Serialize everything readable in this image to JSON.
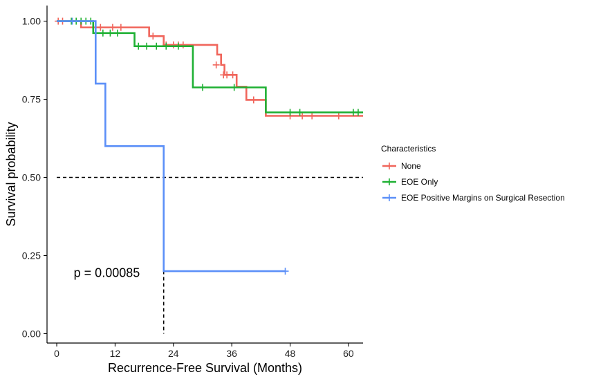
{
  "chart_data": {
    "type": "line",
    "subtype": "kaplan-meier",
    "xlabel": "Recurrence-Free Survival (Months)",
    "ylabel": "Survival probability",
    "xlim": [
      -2,
      63
    ],
    "ylim": [
      -0.03,
      1.05
    ],
    "xticks": [
      0,
      12,
      24,
      36,
      48,
      60
    ],
    "yticks": [
      0.0,
      0.25,
      0.5,
      0.75,
      1.0
    ],
    "ytick_labels": [
      "0.00",
      "0.25",
      "0.50",
      "0.75",
      "1.00"
    ],
    "grid": false,
    "annotation": "p = 0.00085",
    "annotation_pos": {
      "x": 3.5,
      "y": 0.195
    },
    "median_line": {
      "y": 0.5,
      "x_end": 22,
      "style": "dashed"
    },
    "legend": {
      "title": "Characteristics",
      "position": "right"
    },
    "series": [
      {
        "name": "None",
        "color": "#F0655B",
        "steps": [
          [
            0,
            1.0
          ],
          [
            5,
            0.98
          ],
          [
            19,
            0.952
          ],
          [
            22,
            0.924
          ],
          [
            33,
            0.893
          ],
          [
            33.8,
            0.86
          ],
          [
            34.5,
            0.828
          ],
          [
            37,
            0.79
          ],
          [
            39,
            0.748
          ],
          [
            43,
            0.697
          ],
          [
            63,
            0.697
          ]
        ],
        "censors": [
          [
            0.3,
            1.0
          ],
          [
            1.2,
            1.0
          ],
          [
            7.5,
            0.98
          ],
          [
            9,
            0.98
          ],
          [
            11.5,
            0.98
          ],
          [
            13.2,
            0.98
          ],
          [
            19.8,
            0.952
          ],
          [
            22.5,
            0.924
          ],
          [
            24,
            0.924
          ],
          [
            25,
            0.924
          ],
          [
            26,
            0.924
          ],
          [
            32.8,
            0.86
          ],
          [
            34.3,
            0.828
          ],
          [
            35,
            0.828
          ],
          [
            36.2,
            0.828
          ],
          [
            40.5,
            0.748
          ],
          [
            48,
            0.697
          ],
          [
            50.5,
            0.697
          ],
          [
            52.5,
            0.697
          ],
          [
            58,
            0.697
          ]
        ]
      },
      {
        "name": "EOE Only",
        "color": "#1EB033",
        "steps": [
          [
            0,
            1.0
          ],
          [
            7.5,
            0.962
          ],
          [
            16,
            0.92
          ],
          [
            28,
            0.788
          ],
          [
            43,
            0.708
          ],
          [
            63,
            0.708
          ]
        ],
        "censors": [
          [
            3,
            1.0
          ],
          [
            4,
            1.0
          ],
          [
            5,
            1.0
          ],
          [
            6,
            1.0
          ],
          [
            7,
            1.0
          ],
          [
            9.5,
            0.962
          ],
          [
            11,
            0.962
          ],
          [
            12.5,
            0.962
          ],
          [
            16.8,
            0.92
          ],
          [
            18.5,
            0.92
          ],
          [
            20.5,
            0.92
          ],
          [
            22.5,
            0.92
          ],
          [
            25,
            0.92
          ],
          [
            30,
            0.788
          ],
          [
            36.5,
            0.788
          ],
          [
            48,
            0.708
          ],
          [
            50,
            0.708
          ],
          [
            61,
            0.708
          ],
          [
            62,
            0.708
          ]
        ]
      },
      {
        "name": "EOE Positive Margins on Surgical Resection",
        "color": "#5B8FF8",
        "steps": [
          [
            0,
            1.0
          ],
          [
            8,
            0.8
          ],
          [
            10,
            0.6
          ],
          [
            22,
            0.2
          ],
          [
            47,
            0.2
          ]
        ],
        "censors": [
          [
            3.2,
            1.0
          ],
          [
            47,
            0.2
          ]
        ]
      }
    ]
  }
}
